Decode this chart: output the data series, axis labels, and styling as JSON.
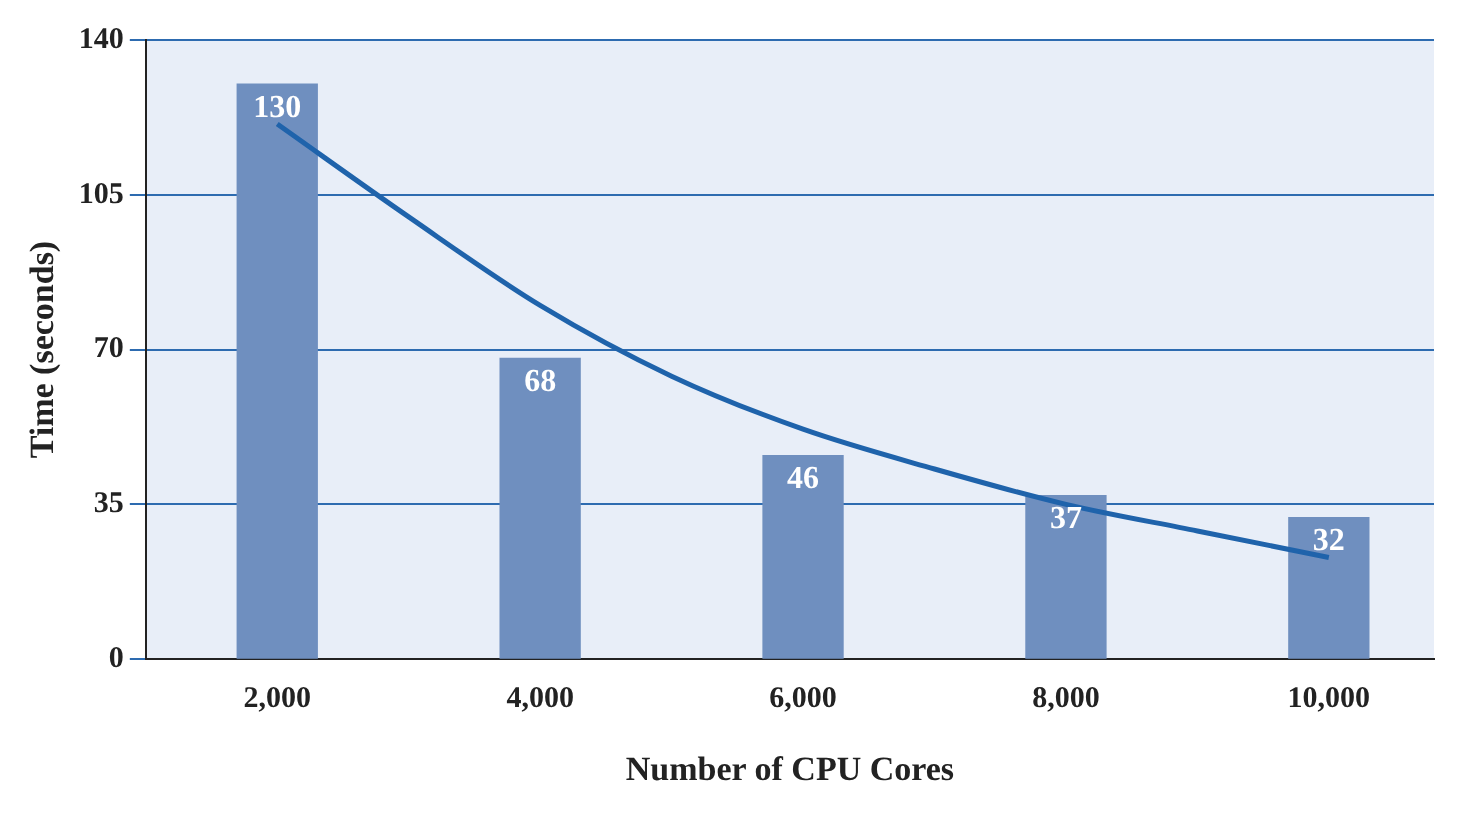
{
  "chart_data": {
    "type": "bar",
    "xlabel": "Number of CPU Cores",
    "ylabel": "Time (seconds)",
    "x": [
      2000,
      4000,
      6000,
      8000,
      10000
    ],
    "series": [
      {
        "color": "#6f8fbf",
        "values": [
          130,
          68,
          46,
          37,
          32
        ],
        "value_labels": [
          "130",
          "68",
          "46",
          "37",
          "32"
        ]
      },
      {
        "type": "line",
        "color": "#1f63ab",
        "x": [
          2000,
          3000,
          4000,
          5000,
          6000,
          7000,
          8000,
          9000,
          10000
        ],
        "values": [
          121,
          100,
          80,
          64,
          52,
          43,
          35,
          29,
          23
        ],
        "marker": "none"
      }
    ],
    "xlim": [
      1000,
      10800
    ],
    "xticks": [
      {
        "value": 2000,
        "label": "2,000"
      },
      {
        "value": 4000,
        "label": "4,000"
      },
      {
        "value": 6000,
        "label": "6,000"
      },
      {
        "value": 8000,
        "label": "8,000"
      },
      {
        "value": 10000,
        "label": "10,000"
      }
    ],
    "ylim": [
      0,
      140
    ],
    "yticks": [
      0,
      35,
      70,
      105,
      140
    ],
    "grid": "y",
    "legend": false
  }
}
